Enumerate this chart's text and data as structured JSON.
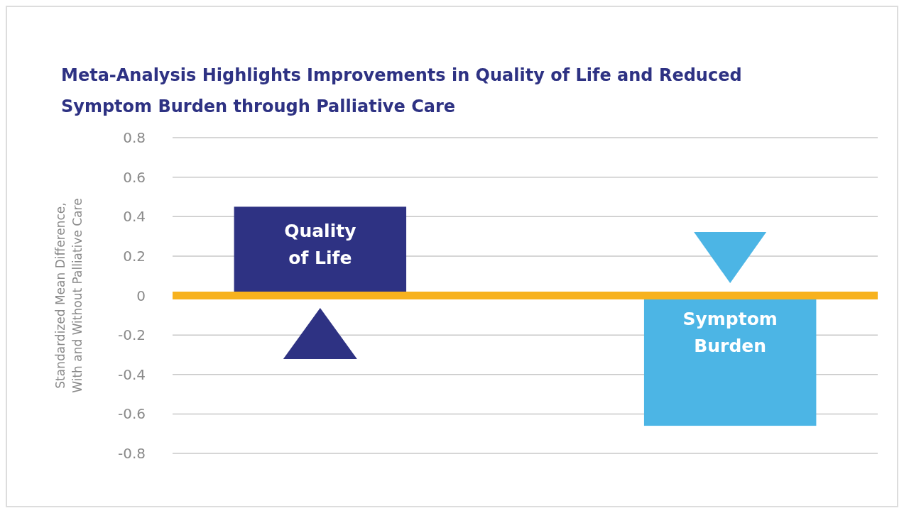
{
  "chart_data": {
    "type": "bar",
    "title": "Meta-Analysis Highlights Improvements in Quality of Life and Reduced Symptom Burden through Palliative Care",
    "ylabel": "Standardized Mean Difference, With and Without Palliative Care",
    "categories": [
      "Quality of Life",
      "Symptom Burden"
    ],
    "values": [
      0.45,
      -0.66
    ],
    "colors": [
      "#2e3283",
      "#4cb5e5"
    ],
    "ylim": [
      -0.8,
      0.8
    ],
    "yticks": [
      -0.8,
      -0.6,
      -0.4,
      -0.2,
      0,
      0.2,
      0.4,
      0.6,
      0.8
    ],
    "grid": "y",
    "tick_labels": "y",
    "ref_lines": [
      {
        "axis": "y",
        "value": 0,
        "color": "#f7b21e"
      }
    ]
  }
}
